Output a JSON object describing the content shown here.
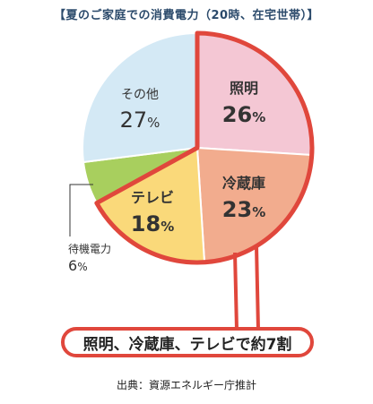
{
  "title": "【夏のご家庭での消費電力（20時、在宅世帯）】",
  "chart_data": {
    "type": "pie",
    "title": "【夏のご家庭での消費電力（20時、在宅世帯）】",
    "slices": [
      {
        "name": "照明",
        "value": 26,
        "label_value": "26",
        "unit": "%",
        "color": "#f4c7d4"
      },
      {
        "name": "冷蔵庫",
        "value": 23,
        "label_value": "23",
        "unit": "%",
        "color": "#f2ac8e"
      },
      {
        "name": "テレビ",
        "value": 18,
        "label_value": "18",
        "unit": "%",
        "color": "#fad97a"
      },
      {
        "name": "待機電力",
        "value": 6,
        "label_value": "6",
        "unit": "%",
        "color": "#a8cf5e"
      },
      {
        "name": "その他",
        "value": 27,
        "label_value": "27",
        "unit": "%",
        "color": "#d4e9f5"
      }
    ],
    "highlight": [
      "照明",
      "冷蔵庫",
      "テレビ"
    ],
    "highlight_color": "#e0473c"
  },
  "callout": "照明、冷蔵庫、テレビで約7割",
  "source": "出典：資源エネルギー庁推計"
}
